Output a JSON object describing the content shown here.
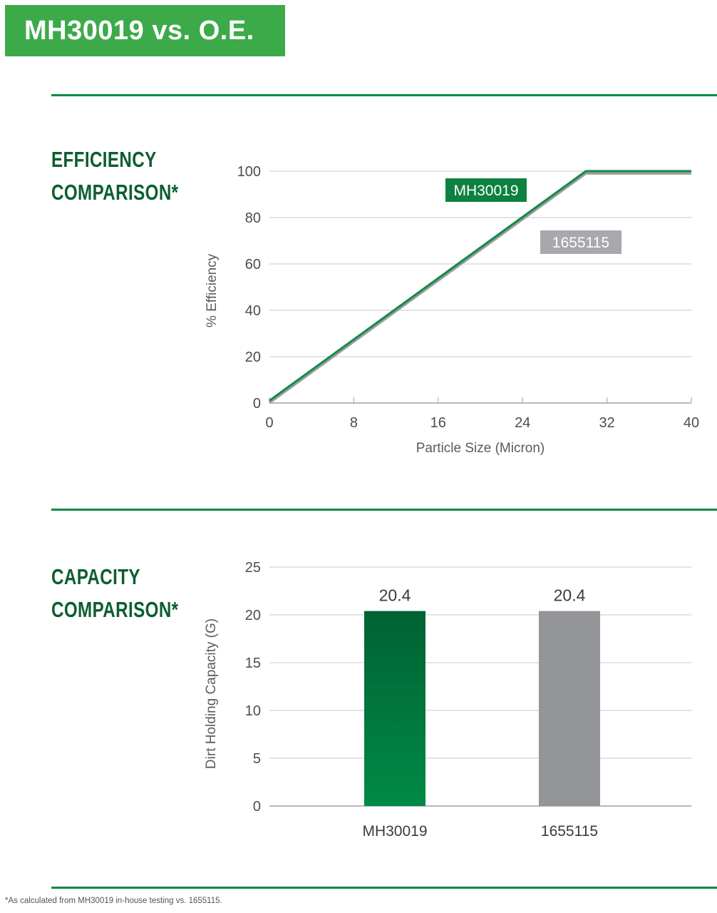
{
  "header": {
    "title": "MH30019 vs. O.E."
  },
  "sections": {
    "efficiency": {
      "heading_line1": "EFFICIENCY",
      "heading_line2": "COMPARISON*"
    },
    "capacity": {
      "heading_line1": "CAPACITY",
      "heading_line2": "COMPARISON*"
    }
  },
  "footnote": "*As calculated from MH30019 in-house testing vs. 1655115.",
  "colors": {
    "brand_green": "#3daa4a",
    "dark_green": "#0c5e2f",
    "line_green": "#1a8a4a",
    "gray": "#9d9fa2"
  },
  "chart_data": [
    {
      "type": "line",
      "xlabel": "Particle Size (Micron)",
      "ylabel": "% Efficiency",
      "xlim": [
        0,
        40
      ],
      "ylim": [
        0,
        100
      ],
      "x_ticks": [
        0,
        8,
        16,
        24,
        32,
        40
      ],
      "y_ticks": [
        0,
        20,
        40,
        60,
        80,
        100
      ],
      "grid": true,
      "series": [
        {
          "name": "MH30019",
          "color": "#1a8a4a",
          "x": [
            0,
            30,
            40
          ],
          "y": [
            1,
            100,
            100
          ]
        },
        {
          "name": "1655115",
          "color": "#9d9fa2",
          "x": [
            0,
            30,
            40
          ],
          "y": [
            0,
            99,
            99
          ]
        }
      ],
      "legend": [
        {
          "label": "MH30019",
          "color": "#0d8140"
        },
        {
          "label": "1655115",
          "color": "#a7a9ac"
        }
      ]
    },
    {
      "type": "bar",
      "ylabel": "Dirt Holding Capacity (G)",
      "categories": [
        "MH30019",
        "1655115"
      ],
      "values": [
        20.4,
        20.4
      ],
      "data_labels": [
        "20.4",
        "20.4"
      ],
      "colors": [
        "#0b7a40",
        "#939598"
      ],
      "ylim": [
        0,
        25
      ],
      "y_ticks": [
        0,
        5,
        10,
        15,
        20,
        25
      ],
      "grid": true
    }
  ]
}
